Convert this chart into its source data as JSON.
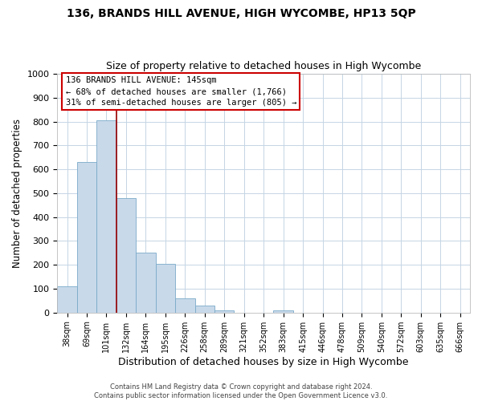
{
  "title1": "136, BRANDS HILL AVENUE, HIGH WYCOMBE, HP13 5QP",
  "title2": "Size of property relative to detached houses in High Wycombe",
  "xlabel": "Distribution of detached houses by size in High Wycombe",
  "ylabel": "Number of detached properties",
  "bar_labels": [
    "38sqm",
    "69sqm",
    "101sqm",
    "132sqm",
    "164sqm",
    "195sqm",
    "226sqm",
    "258sqm",
    "289sqm",
    "321sqm",
    "352sqm",
    "383sqm",
    "415sqm",
    "446sqm",
    "478sqm",
    "509sqm",
    "540sqm",
    "572sqm",
    "603sqm",
    "635sqm",
    "666sqm"
  ],
  "bar_values": [
    110,
    630,
    805,
    480,
    250,
    205,
    60,
    30,
    10,
    0,
    0,
    10,
    0,
    0,
    0,
    0,
    0,
    0,
    0,
    0,
    0
  ],
  "bar_color": "#c8d9ea",
  "bar_edge_color": "#7aaac8",
  "vline_x_index": 2,
  "vline_color": "#990000",
  "ylim": [
    0,
    1000
  ],
  "yticks": [
    0,
    100,
    200,
    300,
    400,
    500,
    600,
    700,
    800,
    900,
    1000
  ],
  "annotation_title": "136 BRANDS HILL AVENUE: 145sqm",
  "annotation_line1": "← 68% of detached houses are smaller (1,766)",
  "annotation_line2": "31% of semi-detached houses are larger (805) →",
  "annotation_box_color": "#ffffff",
  "annotation_box_edge": "#cc0000",
  "footer1": "Contains HM Land Registry data © Crown copyright and database right 2024.",
  "footer2": "Contains public sector information licensed under the Open Government Licence v3.0.",
  "bg_color": "#ffffff",
  "grid_color": "#c5d5e5"
}
